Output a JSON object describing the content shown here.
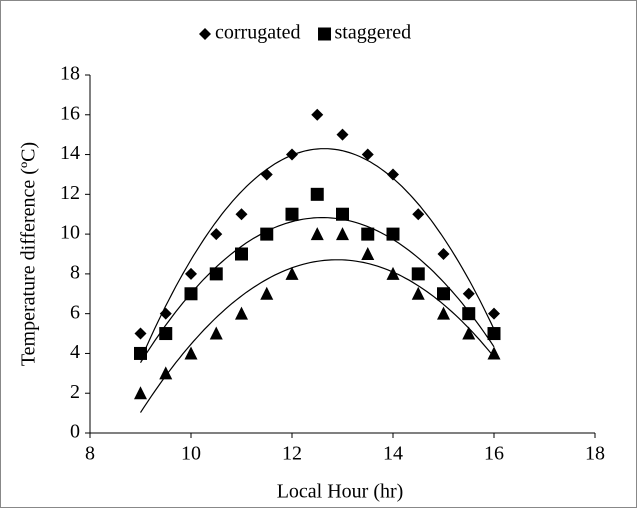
{
  "chart_data": {
    "type": "scatter",
    "x": [
      9,
      9.5,
      10,
      10.5,
      11,
      11.5,
      12,
      12.5,
      13,
      13.5,
      14,
      14.5,
      15,
      15.5,
      16
    ],
    "series": [
      {
        "name": "corrugated",
        "marker": "diamond",
        "color": "#000000",
        "values": [
          5,
          6,
          8,
          10,
          11,
          13,
          14,
          16,
          15,
          14,
          13,
          11,
          9,
          7,
          6
        ]
      },
      {
        "name": "staggered",
        "marker": "square",
        "color": "#000000",
        "values": [
          4,
          5,
          7,
          8,
          9,
          10,
          11,
          12,
          11,
          10,
          10,
          8,
          7,
          6,
          5
        ]
      },
      {
        "marker": "triangle",
        "color": "#000000",
        "values": [
          2,
          3,
          4,
          5,
          6,
          7,
          8,
          10,
          10,
          9,
          8,
          7,
          6,
          5,
          4
        ]
      }
    ],
    "x_label": "Local Hour (hr)",
    "y_label": "Temperature difference (ºC)",
    "xlim": [
      8,
      18
    ],
    "xticks": [
      8,
      10,
      12,
      14,
      16,
      18
    ],
    "ylim": [
      0,
      18
    ],
    "yticks": [
      0,
      2,
      4,
      6,
      8,
      10,
      12,
      14,
      16,
      18
    ],
    "trendline": "polynomial",
    "legend": "top",
    "grid": false
  }
}
